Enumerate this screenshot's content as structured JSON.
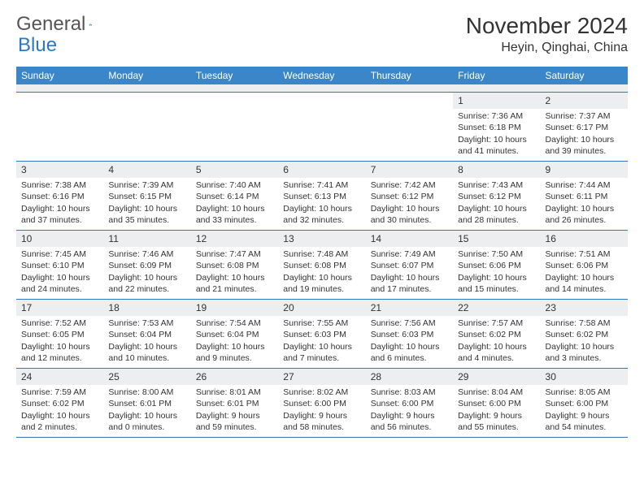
{
  "brand": {
    "word1": "General",
    "word2": "Blue"
  },
  "title": "November 2024",
  "location": "Heyin, Qinghai, China",
  "colors": {
    "header_bg": "#3a86c8",
    "border": "#2d78c4",
    "daynum_bg": "#edeeef",
    "text": "#333333",
    "brand_grey": "#555555",
    "brand_blue": "#2d78c4",
    "white": "#ffffff"
  },
  "weekdays": [
    "Sunday",
    "Monday",
    "Tuesday",
    "Wednesday",
    "Thursday",
    "Friday",
    "Saturday"
  ],
  "weeks": [
    [
      {
        "n": "",
        "sr": "",
        "ss": "",
        "dl": ""
      },
      {
        "n": "",
        "sr": "",
        "ss": "",
        "dl": ""
      },
      {
        "n": "",
        "sr": "",
        "ss": "",
        "dl": ""
      },
      {
        "n": "",
        "sr": "",
        "ss": "",
        "dl": ""
      },
      {
        "n": "",
        "sr": "",
        "ss": "",
        "dl": ""
      },
      {
        "n": "1",
        "sr": "Sunrise: 7:36 AM",
        "ss": "Sunset: 6:18 PM",
        "dl": "Daylight: 10 hours and 41 minutes."
      },
      {
        "n": "2",
        "sr": "Sunrise: 7:37 AM",
        "ss": "Sunset: 6:17 PM",
        "dl": "Daylight: 10 hours and 39 minutes."
      }
    ],
    [
      {
        "n": "3",
        "sr": "Sunrise: 7:38 AM",
        "ss": "Sunset: 6:16 PM",
        "dl": "Daylight: 10 hours and 37 minutes."
      },
      {
        "n": "4",
        "sr": "Sunrise: 7:39 AM",
        "ss": "Sunset: 6:15 PM",
        "dl": "Daylight: 10 hours and 35 minutes."
      },
      {
        "n": "5",
        "sr": "Sunrise: 7:40 AM",
        "ss": "Sunset: 6:14 PM",
        "dl": "Daylight: 10 hours and 33 minutes."
      },
      {
        "n": "6",
        "sr": "Sunrise: 7:41 AM",
        "ss": "Sunset: 6:13 PM",
        "dl": "Daylight: 10 hours and 32 minutes."
      },
      {
        "n": "7",
        "sr": "Sunrise: 7:42 AM",
        "ss": "Sunset: 6:12 PM",
        "dl": "Daylight: 10 hours and 30 minutes."
      },
      {
        "n": "8",
        "sr": "Sunrise: 7:43 AM",
        "ss": "Sunset: 6:12 PM",
        "dl": "Daylight: 10 hours and 28 minutes."
      },
      {
        "n": "9",
        "sr": "Sunrise: 7:44 AM",
        "ss": "Sunset: 6:11 PM",
        "dl": "Daylight: 10 hours and 26 minutes."
      }
    ],
    [
      {
        "n": "10",
        "sr": "Sunrise: 7:45 AM",
        "ss": "Sunset: 6:10 PM",
        "dl": "Daylight: 10 hours and 24 minutes."
      },
      {
        "n": "11",
        "sr": "Sunrise: 7:46 AM",
        "ss": "Sunset: 6:09 PM",
        "dl": "Daylight: 10 hours and 22 minutes."
      },
      {
        "n": "12",
        "sr": "Sunrise: 7:47 AM",
        "ss": "Sunset: 6:08 PM",
        "dl": "Daylight: 10 hours and 21 minutes."
      },
      {
        "n": "13",
        "sr": "Sunrise: 7:48 AM",
        "ss": "Sunset: 6:08 PM",
        "dl": "Daylight: 10 hours and 19 minutes."
      },
      {
        "n": "14",
        "sr": "Sunrise: 7:49 AM",
        "ss": "Sunset: 6:07 PM",
        "dl": "Daylight: 10 hours and 17 minutes."
      },
      {
        "n": "15",
        "sr": "Sunrise: 7:50 AM",
        "ss": "Sunset: 6:06 PM",
        "dl": "Daylight: 10 hours and 15 minutes."
      },
      {
        "n": "16",
        "sr": "Sunrise: 7:51 AM",
        "ss": "Sunset: 6:06 PM",
        "dl": "Daylight: 10 hours and 14 minutes."
      }
    ],
    [
      {
        "n": "17",
        "sr": "Sunrise: 7:52 AM",
        "ss": "Sunset: 6:05 PM",
        "dl": "Daylight: 10 hours and 12 minutes."
      },
      {
        "n": "18",
        "sr": "Sunrise: 7:53 AM",
        "ss": "Sunset: 6:04 PM",
        "dl": "Daylight: 10 hours and 10 minutes."
      },
      {
        "n": "19",
        "sr": "Sunrise: 7:54 AM",
        "ss": "Sunset: 6:04 PM",
        "dl": "Daylight: 10 hours and 9 minutes."
      },
      {
        "n": "20",
        "sr": "Sunrise: 7:55 AM",
        "ss": "Sunset: 6:03 PM",
        "dl": "Daylight: 10 hours and 7 minutes."
      },
      {
        "n": "21",
        "sr": "Sunrise: 7:56 AM",
        "ss": "Sunset: 6:03 PM",
        "dl": "Daylight: 10 hours and 6 minutes."
      },
      {
        "n": "22",
        "sr": "Sunrise: 7:57 AM",
        "ss": "Sunset: 6:02 PM",
        "dl": "Daylight: 10 hours and 4 minutes."
      },
      {
        "n": "23",
        "sr": "Sunrise: 7:58 AM",
        "ss": "Sunset: 6:02 PM",
        "dl": "Daylight: 10 hours and 3 minutes."
      }
    ],
    [
      {
        "n": "24",
        "sr": "Sunrise: 7:59 AM",
        "ss": "Sunset: 6:02 PM",
        "dl": "Daylight: 10 hours and 2 minutes."
      },
      {
        "n": "25",
        "sr": "Sunrise: 8:00 AM",
        "ss": "Sunset: 6:01 PM",
        "dl": "Daylight: 10 hours and 0 minutes."
      },
      {
        "n": "26",
        "sr": "Sunrise: 8:01 AM",
        "ss": "Sunset: 6:01 PM",
        "dl": "Daylight: 9 hours and 59 minutes."
      },
      {
        "n": "27",
        "sr": "Sunrise: 8:02 AM",
        "ss": "Sunset: 6:00 PM",
        "dl": "Daylight: 9 hours and 58 minutes."
      },
      {
        "n": "28",
        "sr": "Sunrise: 8:03 AM",
        "ss": "Sunset: 6:00 PM",
        "dl": "Daylight: 9 hours and 56 minutes."
      },
      {
        "n": "29",
        "sr": "Sunrise: 8:04 AM",
        "ss": "Sunset: 6:00 PM",
        "dl": "Daylight: 9 hours and 55 minutes."
      },
      {
        "n": "30",
        "sr": "Sunrise: 8:05 AM",
        "ss": "Sunset: 6:00 PM",
        "dl": "Daylight: 9 hours and 54 minutes."
      }
    ]
  ]
}
